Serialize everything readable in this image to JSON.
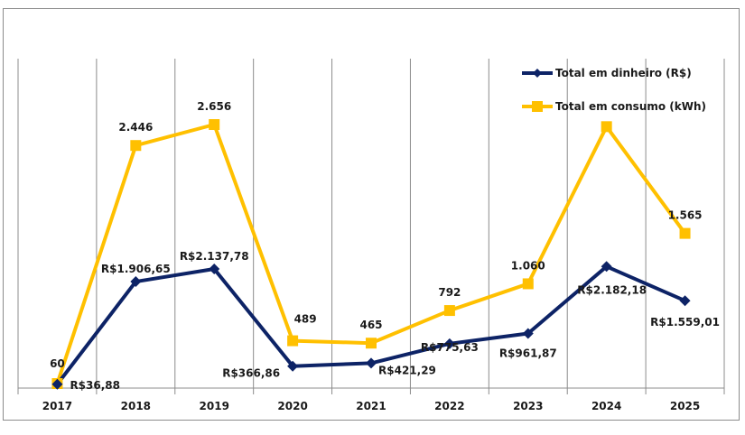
{
  "chart_data": {
    "type": "line",
    "title": "",
    "xlabel": "",
    "ylabel": "",
    "categories": [
      "2017",
      "2018",
      "2019",
      "2020",
      "2021",
      "2022",
      "2023",
      "2024",
      "2025"
    ],
    "grid": "vertical",
    "legend_position": "top-right",
    "series": [
      {
        "name": "Total em dinheiro (R$)",
        "color": "#0d2366",
        "marker": "diamond",
        "values": [
          36.88,
          1906.65,
          2137.78,
          366.86,
          421.29,
          775.63,
          961.87,
          2182.18,
          1559.01
        ],
        "labels": [
          "R$36,88",
          "R$1.906,65",
          "R$2.137,78",
          "R$366,86",
          "R$421,29",
          "R$775,63",
          "R$961,87",
          "R$2.182,18",
          "R$1.559,01"
        ]
      },
      {
        "name": "Total em consumo (kWh)",
        "color": "#ffc000",
        "marker": "square",
        "values": [
          60,
          2446,
          2656,
          489,
          465,
          792,
          1060,
          2635,
          1565
        ],
        "labels": [
          "60",
          "2.446",
          "2.656",
          "489",
          "465",
          "792",
          "1.060",
          "",
          "1.565"
        ]
      }
    ],
    "ylim": [
      0,
      2900
    ]
  }
}
